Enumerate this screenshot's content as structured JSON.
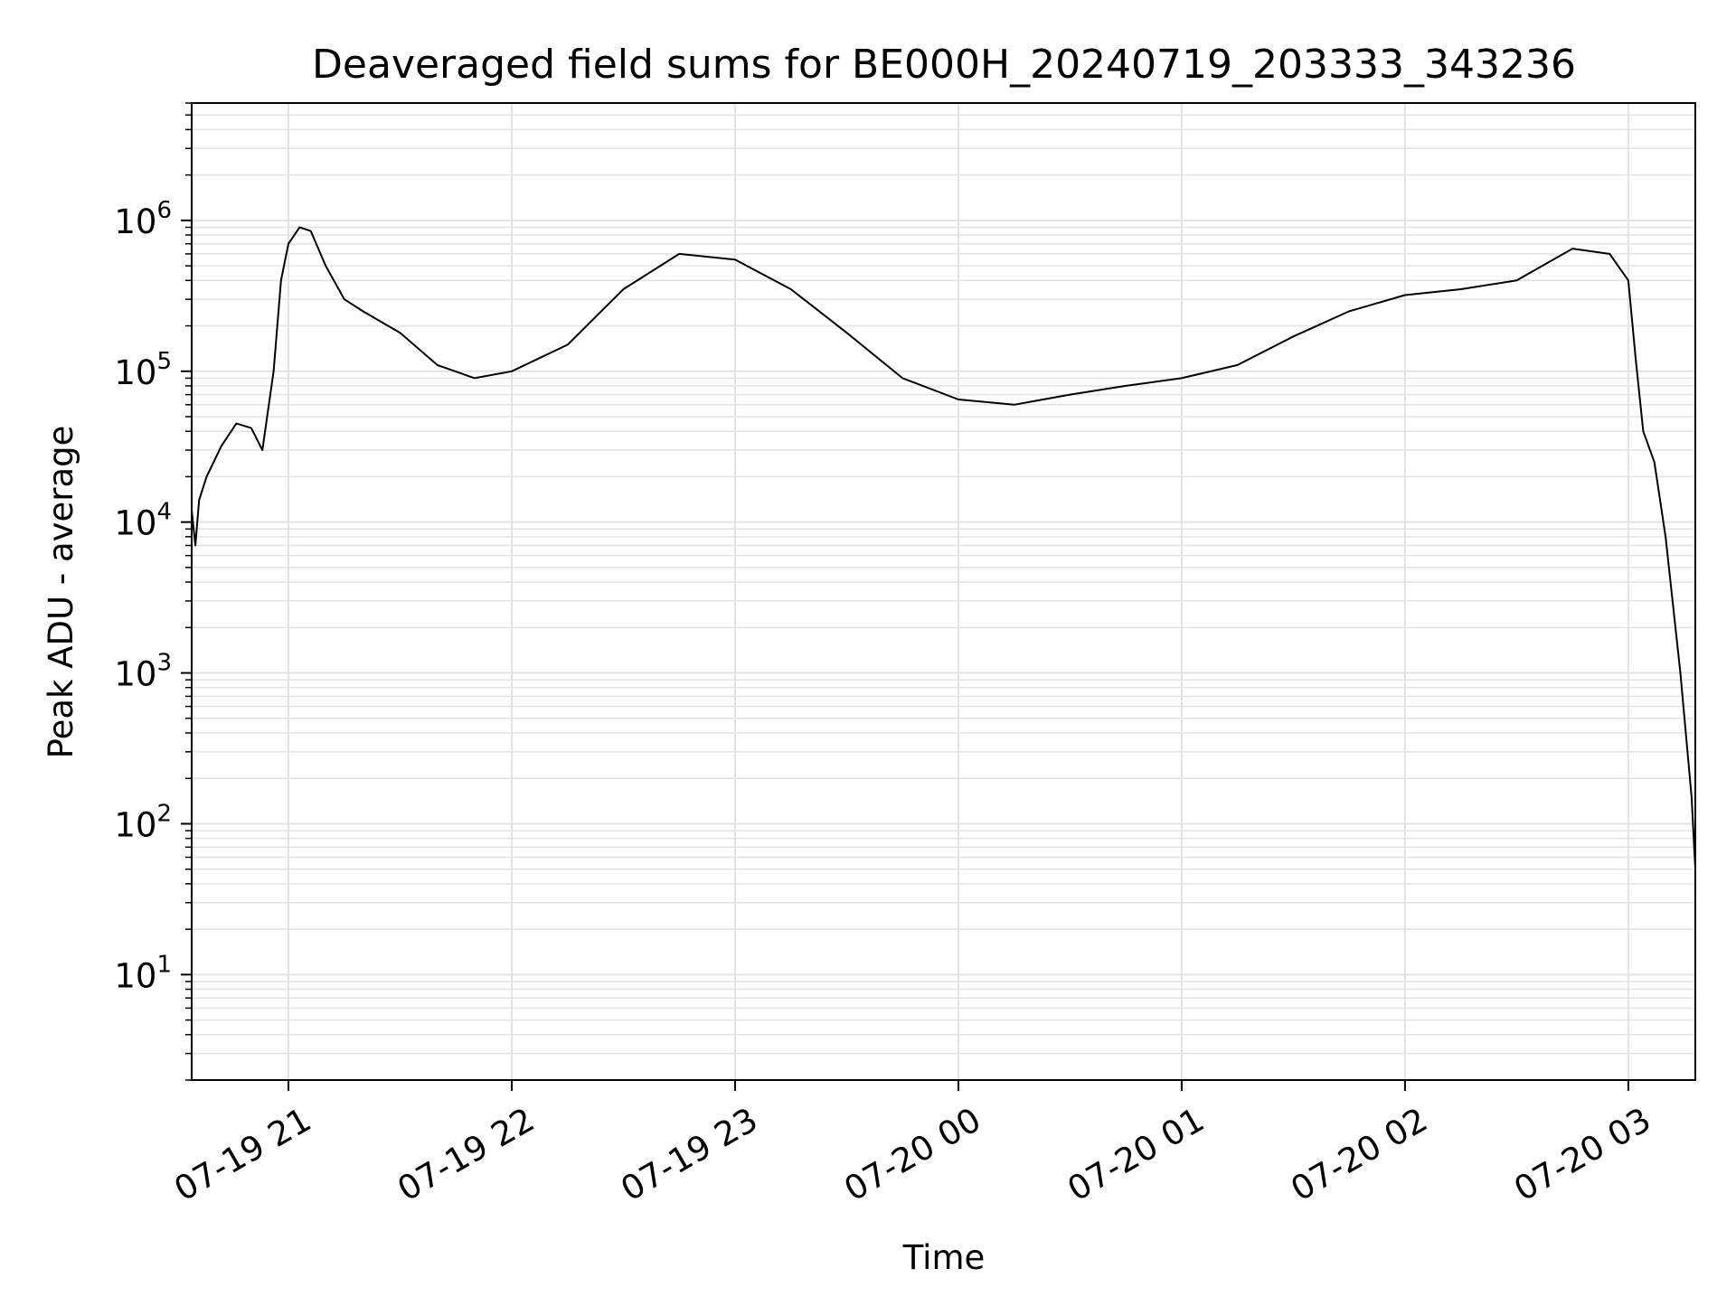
{
  "chart_data": {
    "type": "line",
    "title": "Deaveraged field sums for BE000H_20240719_203333_343236",
    "xlabel": "Time",
    "ylabel": "Peak ADU - average",
    "y_scale": "log",
    "ylim": [
      2,
      6000000
    ],
    "xlim": [
      "2024-07-19 20:34",
      "2024-07-20 03:18"
    ],
    "grid": true,
    "grid_color": "#e3e3e3",
    "line_color": "#000000",
    "x_ticks": [
      {
        "value": "2024-07-19 21:00",
        "label": "07-19 21"
      },
      {
        "value": "2024-07-19 22:00",
        "label": "07-19 22"
      },
      {
        "value": "2024-07-19 23:00",
        "label": "07-19 23"
      },
      {
        "value": "2024-07-20 00:00",
        "label": "07-20 00"
      },
      {
        "value": "2024-07-20 01:00",
        "label": "07-20 01"
      },
      {
        "value": "2024-07-20 02:00",
        "label": "07-20 02"
      },
      {
        "value": "2024-07-20 03:00",
        "label": "07-20 03"
      }
    ],
    "y_ticks": [
      {
        "value": 10,
        "base": "10",
        "exp": "1"
      },
      {
        "value": 100,
        "base": "10",
        "exp": "2"
      },
      {
        "value": 1000,
        "base": "10",
        "exp": "3"
      },
      {
        "value": 10000,
        "base": "10",
        "exp": "4"
      },
      {
        "value": 100000,
        "base": "10",
        "exp": "5"
      },
      {
        "value": 1000000,
        "base": "10",
        "exp": "6"
      }
    ],
    "series": [
      {
        "points": [
          [
            "2024-07-19 20:34",
            12000
          ],
          [
            "2024-07-19 20:35",
            7000
          ],
          [
            "2024-07-19 20:36",
            14000
          ],
          [
            "2024-07-19 20:38",
            20000
          ],
          [
            "2024-07-19 20:42",
            32000
          ],
          [
            "2024-07-19 20:46",
            45000
          ],
          [
            "2024-07-19 20:50",
            42000
          ],
          [
            "2024-07-19 20:53",
            30000
          ],
          [
            "2024-07-19 20:56",
            100000
          ],
          [
            "2024-07-19 20:58",
            400000
          ],
          [
            "2024-07-19 21:00",
            700000
          ],
          [
            "2024-07-19 21:03",
            900000
          ],
          [
            "2024-07-19 21:06",
            850000
          ],
          [
            "2024-07-19 21:10",
            500000
          ],
          [
            "2024-07-19 21:15",
            300000
          ],
          [
            "2024-07-19 21:20",
            250000
          ],
          [
            "2024-07-19 21:30",
            180000
          ],
          [
            "2024-07-19 21:40",
            110000
          ],
          [
            "2024-07-19 21:50",
            90000
          ],
          [
            "2024-07-19 22:00",
            100000
          ],
          [
            "2024-07-19 22:15",
            150000
          ],
          [
            "2024-07-19 22:30",
            350000
          ],
          [
            "2024-07-19 22:45",
            600000
          ],
          [
            "2024-07-19 23:00",
            550000
          ],
          [
            "2024-07-19 23:15",
            350000
          ],
          [
            "2024-07-19 23:30",
            180000
          ],
          [
            "2024-07-19 23:45",
            90000
          ],
          [
            "2024-07-20 00:00",
            65000
          ],
          [
            "2024-07-20 00:15",
            60000
          ],
          [
            "2024-07-20 00:30",
            70000
          ],
          [
            "2024-07-20 00:45",
            80000
          ],
          [
            "2024-07-20 01:00",
            90000
          ],
          [
            "2024-07-20 01:15",
            110000
          ],
          [
            "2024-07-20 01:30",
            170000
          ],
          [
            "2024-07-20 01:45",
            250000
          ],
          [
            "2024-07-20 02:00",
            320000
          ],
          [
            "2024-07-20 02:15",
            350000
          ],
          [
            "2024-07-20 02:30",
            400000
          ],
          [
            "2024-07-20 02:45",
            650000
          ],
          [
            "2024-07-20 02:55",
            600000
          ],
          [
            "2024-07-20 03:00",
            400000
          ],
          [
            "2024-07-20 03:02",
            120000
          ],
          [
            "2024-07-20 03:04",
            40000
          ],
          [
            "2024-07-20 03:07",
            25000
          ],
          [
            "2024-07-20 03:10",
            8000
          ],
          [
            "2024-07-20 03:14",
            1000
          ],
          [
            "2024-07-20 03:17",
            150
          ],
          [
            "2024-07-20 03:18",
            50
          ]
        ]
      }
    ]
  }
}
